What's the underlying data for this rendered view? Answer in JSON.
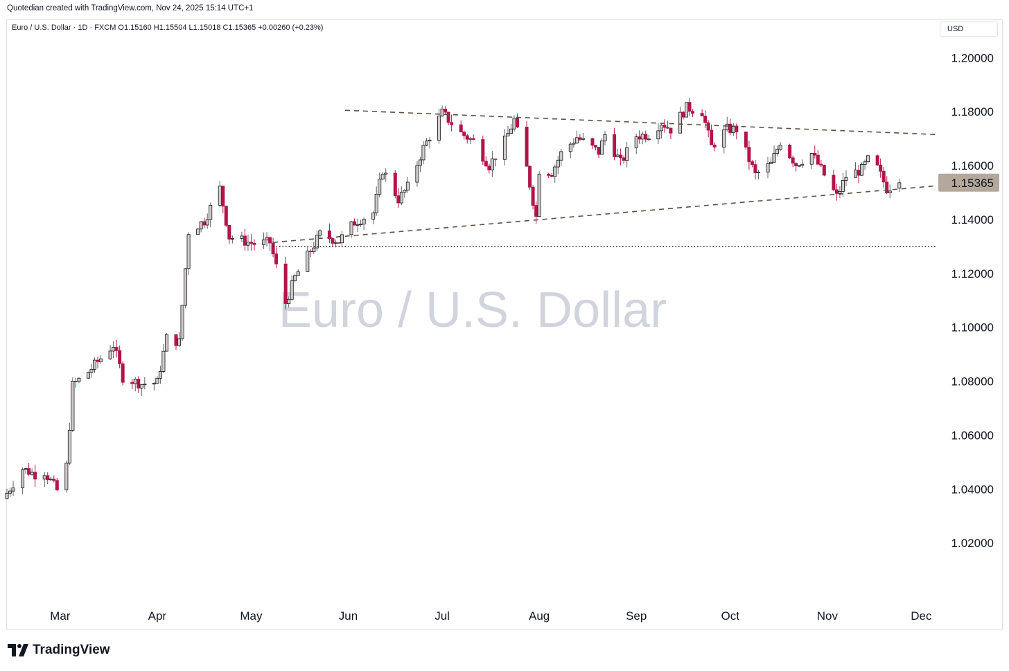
{
  "header": {
    "credit": "Quotedian created with TradingView.com, Nov 24, 2025 15:14 UTC+1",
    "symbol_line": "Euro / U.S. Dollar · 1D · FXCM  O1.15160  H1.15504  L1.15018  C1.15365  +0.00260 (+0.23%)",
    "currency": "USD"
  },
  "footer": {
    "brand": "TradingView",
    "logo_icon": "tradingview-logo-icon"
  },
  "colors": {
    "up_fill": "#ffffff",
    "up_stroke": "#131722",
    "up_body": "#d1ccc7",
    "down_body": "#b2154a",
    "wick": "#5d6066",
    "trendline": "#5a4f45",
    "price_tag": "#b3a89b",
    "watermark": "#d1d4dc",
    "grid_text": "#131722"
  },
  "chart_data": {
    "type": "candlestick",
    "title": "Euro / U.S. Dollar",
    "watermark": "Euro / U.S. Dollar",
    "interval": "1D",
    "source": "FXCM",
    "last_price_label": "1.15365",
    "ylim": [
      1.0,
      1.206
    ],
    "y_ticks": [
      "1.20000",
      "1.18000",
      "1.16000",
      "1.14000",
      "1.12000",
      "1.10000",
      "1.08000",
      "1.06000",
      "1.04000",
      "1.02000"
    ],
    "y_tick_values": [
      1.2,
      1.18,
      1.16,
      1.14,
      1.12,
      1.1,
      1.08,
      1.06,
      1.04,
      1.02
    ],
    "x_ticks": [
      {
        "label": "Mar",
        "date": "2025-03-01"
      },
      {
        "label": "Apr",
        "date": "2025-04-01"
      },
      {
        "label": "May",
        "date": "2025-05-01"
      },
      {
        "label": "Jun",
        "date": "2025-06-01"
      },
      {
        "label": "Jul",
        "date": "2025-07-01"
      },
      {
        "label": "Aug",
        "date": "2025-08-01"
      },
      {
        "label": "Sep",
        "date": "2025-09-01"
      },
      {
        "label": "Oct",
        "date": "2025-10-01"
      },
      {
        "label": "Nov",
        "date": "2025-11-01"
      },
      {
        "label": "Dec",
        "date": "2025-12-01"
      }
    ],
    "xlim": [
      "2025-02-12",
      "2025-12-06"
    ],
    "anchors": [
      {
        "date": "2025-02-12",
        "close": 1.0385
      },
      {
        "date": "2025-02-17",
        "close": 1.0475
      },
      {
        "date": "2025-02-21",
        "close": 1.0455
      },
      {
        "date": "2025-02-24",
        "close": 1.0465
      },
      {
        "date": "2025-02-28",
        "close": 1.0395
      },
      {
        "date": "2025-03-03",
        "close": 1.0485
      },
      {
        "date": "2025-03-05",
        "close": 1.0785
      },
      {
        "date": "2025-03-10",
        "close": 1.0835
      },
      {
        "date": "2025-03-18",
        "close": 1.0935
      },
      {
        "date": "2025-03-21",
        "close": 1.0815
      },
      {
        "date": "2025-03-27",
        "close": 1.079
      },
      {
        "date": "2025-04-01",
        "close": 1.0795
      },
      {
        "date": "2025-04-04",
        "close": 1.096
      },
      {
        "date": "2025-04-08",
        "close": 1.0945
      },
      {
        "date": "2025-04-11",
        "close": 1.1355
      },
      {
        "date": "2025-04-16",
        "close": 1.1395
      },
      {
        "date": "2025-04-21",
        "close": 1.1515
      },
      {
        "date": "2025-04-24",
        "close": 1.1335
      },
      {
        "date": "2025-05-02",
        "close": 1.131
      },
      {
        "date": "2025-05-07",
        "close": 1.1315
      },
      {
        "date": "2025-05-12",
        "close": 1.109
      },
      {
        "date": "2025-05-15",
        "close": 1.1185
      },
      {
        "date": "2025-05-20",
        "close": 1.1285
      },
      {
        "date": "2025-05-23",
        "close": 1.1345
      },
      {
        "date": "2025-05-29",
        "close": 1.132
      },
      {
        "date": "2025-06-03",
        "close": 1.139
      },
      {
        "date": "2025-06-09",
        "close": 1.1425
      },
      {
        "date": "2025-06-12",
        "close": 1.1585
      },
      {
        "date": "2025-06-17",
        "close": 1.1475
      },
      {
        "date": "2025-06-20",
        "close": 1.152
      },
      {
        "date": "2025-06-25",
        "close": 1.1665
      },
      {
        "date": "2025-07-01",
        "close": 1.1795
      },
      {
        "date": "2025-07-07",
        "close": 1.172
      },
      {
        "date": "2025-07-11",
        "close": 1.169
      },
      {
        "date": "2025-07-16",
        "close": 1.16
      },
      {
        "date": "2025-07-21",
        "close": 1.169
      },
      {
        "date": "2025-07-24",
        "close": 1.177
      },
      {
        "date": "2025-07-28",
        "close": 1.159
      },
      {
        "date": "2025-07-31",
        "close": 1.141
      },
      {
        "date": "2025-08-01",
        "close": 1.1585
      },
      {
        "date": "2025-08-05",
        "close": 1.1575
      },
      {
        "date": "2025-08-08",
        "close": 1.1645
      },
      {
        "date": "2025-08-13",
        "close": 1.1705
      },
      {
        "date": "2025-08-20",
        "close": 1.165
      },
      {
        "date": "2025-08-22",
        "close": 1.1715
      },
      {
        "date": "2025-08-27",
        "close": 1.161
      },
      {
        "date": "2025-09-01",
        "close": 1.171
      },
      {
        "date": "2025-09-05",
        "close": 1.1715
      },
      {
        "date": "2025-09-09",
        "close": 1.176
      },
      {
        "date": "2025-09-12",
        "close": 1.1735
      },
      {
        "date": "2025-09-17",
        "close": 1.1815
      },
      {
        "date": "2025-09-22",
        "close": 1.18
      },
      {
        "date": "2025-09-25",
        "close": 1.167
      },
      {
        "date": "2025-09-30",
        "close": 1.1735
      },
      {
        "date": "2025-10-03",
        "close": 1.1735
      },
      {
        "date": "2025-10-09",
        "close": 1.1565
      },
      {
        "date": "2025-10-14",
        "close": 1.1605
      },
      {
        "date": "2025-10-17",
        "close": 1.169
      },
      {
        "date": "2025-10-22",
        "close": 1.1605
      },
      {
        "date": "2025-10-27",
        "close": 1.1645
      },
      {
        "date": "2025-11-04",
        "close": 1.1485
      },
      {
        "date": "2025-11-07",
        "close": 1.156
      },
      {
        "date": "2025-11-12",
        "close": 1.1585
      },
      {
        "date": "2025-11-14",
        "close": 1.162
      },
      {
        "date": "2025-11-17",
        "close": 1.159
      },
      {
        "date": "2025-11-20",
        "close": 1.1515
      },
      {
        "date": "2025-11-24",
        "close": 1.15365
      }
    ],
    "candles_last": {
      "date": "2025-11-24",
      "open": 1.1516,
      "high": 1.15504,
      "low": 1.15018,
      "close": 1.15365
    },
    "trendlines": [
      {
        "name": "upper-resistance",
        "style": "dashed",
        "from": {
          "date": "2025-05-31",
          "price": 1.1805
        },
        "to": {
          "date": "2025-12-06",
          "price": 1.1715
        }
      },
      {
        "name": "lower-support",
        "style": "dashed",
        "from": {
          "date": "2025-05-08",
          "price": 1.1315
        },
        "to": {
          "date": "2025-12-06",
          "price": 1.1525
        }
      },
      {
        "name": "horizontal-level",
        "style": "dotted",
        "from": {
          "date": "2025-05-08",
          "price": 1.13
        },
        "to": {
          "date": "2025-12-06",
          "price": 1.13
        }
      }
    ]
  }
}
